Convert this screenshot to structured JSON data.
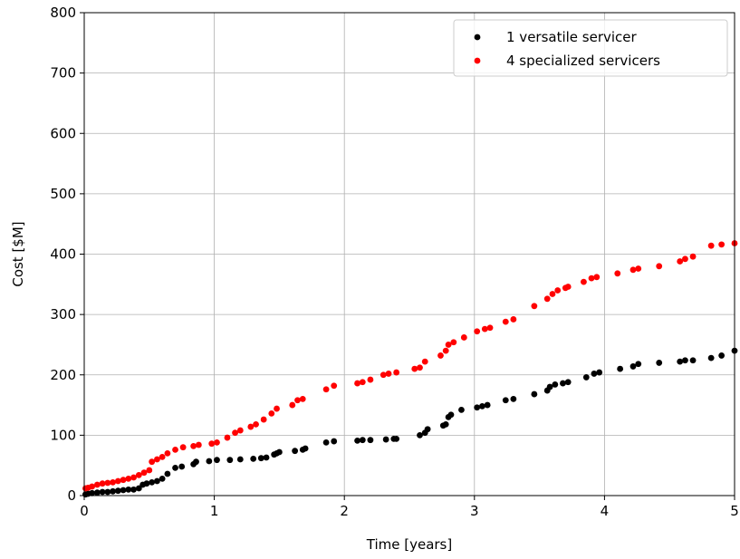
{
  "chart_data": {
    "type": "scatter",
    "xlabel": "Time [years]",
    "ylabel": "Cost [$M]",
    "xlim": [
      0,
      5
    ],
    "ylim": [
      0,
      800
    ],
    "xticks": [
      0,
      1,
      2,
      3,
      4,
      5
    ],
    "yticks": [
      0,
      100,
      200,
      300,
      400,
      500,
      600,
      700,
      800
    ],
    "grid": true,
    "legend_position": "top-right",
    "series": [
      {
        "name": "1 versatile servicer",
        "color": "#000000",
        "points": [
          [
            0.01,
            2
          ],
          [
            0.03,
            3
          ],
          [
            0.06,
            4
          ],
          [
            0.1,
            5
          ],
          [
            0.14,
            6
          ],
          [
            0.18,
            6
          ],
          [
            0.22,
            7
          ],
          [
            0.26,
            8
          ],
          [
            0.3,
            9
          ],
          [
            0.34,
            10
          ],
          [
            0.38,
            10
          ],
          [
            0.42,
            12
          ],
          [
            0.45,
            18
          ],
          [
            0.48,
            20
          ],
          [
            0.52,
            22
          ],
          [
            0.56,
            24
          ],
          [
            0.6,
            28
          ],
          [
            0.64,
            36
          ],
          [
            0.7,
            46
          ],
          [
            0.75,
            48
          ],
          [
            0.84,
            52
          ],
          [
            0.86,
            56
          ],
          [
            0.96,
            57
          ],
          [
            1.02,
            59
          ],
          [
            1.12,
            59
          ],
          [
            1.2,
            60
          ],
          [
            1.3,
            61
          ],
          [
            1.36,
            62
          ],
          [
            1.4,
            63
          ],
          [
            1.46,
            68
          ],
          [
            1.48,
            70
          ],
          [
            1.5,
            72
          ],
          [
            1.62,
            74
          ],
          [
            1.68,
            76
          ],
          [
            1.7,
            78
          ],
          [
            1.86,
            88
          ],
          [
            1.92,
            90
          ],
          [
            2.1,
            91
          ],
          [
            2.14,
            92
          ],
          [
            2.2,
            92
          ],
          [
            2.32,
            93
          ],
          [
            2.38,
            94
          ],
          [
            2.4,
            94
          ],
          [
            2.58,
            100
          ],
          [
            2.62,
            104
          ],
          [
            2.64,
            110
          ],
          [
            2.76,
            116
          ],
          [
            2.78,
            118
          ],
          [
            2.8,
            130
          ],
          [
            2.82,
            134
          ],
          [
            2.9,
            142
          ],
          [
            3.02,
            146
          ],
          [
            3.06,
            148
          ],
          [
            3.1,
            150
          ],
          [
            3.24,
            158
          ],
          [
            3.3,
            160
          ],
          [
            3.46,
            168
          ],
          [
            3.56,
            174
          ],
          [
            3.58,
            180
          ],
          [
            3.62,
            184
          ],
          [
            3.68,
            186
          ],
          [
            3.72,
            188
          ],
          [
            3.86,
            196
          ],
          [
            3.92,
            202
          ],
          [
            3.96,
            204
          ],
          [
            4.12,
            210
          ],
          [
            4.22,
            214
          ],
          [
            4.26,
            218
          ],
          [
            4.42,
            220
          ],
          [
            4.58,
            222
          ],
          [
            4.62,
            224
          ],
          [
            4.68,
            224
          ],
          [
            4.82,
            228
          ],
          [
            4.9,
            232
          ],
          [
            5.0,
            240
          ]
        ]
      },
      {
        "name": "4 specialized servicers",
        "color": "#ff0000",
        "points": [
          [
            0.01,
            12
          ],
          [
            0.03,
            13
          ],
          [
            0.06,
            15
          ],
          [
            0.1,
            18
          ],
          [
            0.14,
            20
          ],
          [
            0.18,
            21
          ],
          [
            0.22,
            22
          ],
          [
            0.26,
            24
          ],
          [
            0.3,
            26
          ],
          [
            0.34,
            28
          ],
          [
            0.38,
            30
          ],
          [
            0.42,
            34
          ],
          [
            0.46,
            38
          ],
          [
            0.5,
            42
          ],
          [
            0.52,
            56
          ],
          [
            0.56,
            60
          ],
          [
            0.6,
            64
          ],
          [
            0.64,
            70
          ],
          [
            0.7,
            76
          ],
          [
            0.76,
            80
          ],
          [
            0.84,
            82
          ],
          [
            0.88,
            84
          ],
          [
            0.98,
            86
          ],
          [
            1.02,
            88
          ],
          [
            1.1,
            96
          ],
          [
            1.16,
            104
          ],
          [
            1.2,
            108
          ],
          [
            1.28,
            114
          ],
          [
            1.32,
            118
          ],
          [
            1.38,
            126
          ],
          [
            1.44,
            136
          ],
          [
            1.48,
            144
          ],
          [
            1.6,
            150
          ],
          [
            1.64,
            158
          ],
          [
            1.68,
            160
          ],
          [
            1.86,
            176
          ],
          [
            1.92,
            182
          ],
          [
            2.1,
            186
          ],
          [
            2.14,
            188
          ],
          [
            2.2,
            192
          ],
          [
            2.3,
            200
          ],
          [
            2.34,
            202
          ],
          [
            2.4,
            204
          ],
          [
            2.54,
            210
          ],
          [
            2.58,
            212
          ],
          [
            2.62,
            222
          ],
          [
            2.74,
            232
          ],
          [
            2.78,
            240
          ],
          [
            2.8,
            250
          ],
          [
            2.84,
            254
          ],
          [
            2.92,
            262
          ],
          [
            3.02,
            272
          ],
          [
            3.08,
            276
          ],
          [
            3.12,
            278
          ],
          [
            3.24,
            288
          ],
          [
            3.3,
            292
          ],
          [
            3.46,
            314
          ],
          [
            3.56,
            326
          ],
          [
            3.6,
            334
          ],
          [
            3.64,
            340
          ],
          [
            3.7,
            344
          ],
          [
            3.72,
            346
          ],
          [
            3.84,
            354
          ],
          [
            3.9,
            360
          ],
          [
            3.94,
            362
          ],
          [
            4.1,
            368
          ],
          [
            4.22,
            374
          ],
          [
            4.26,
            376
          ],
          [
            4.42,
            380
          ],
          [
            4.58,
            388
          ],
          [
            4.62,
            392
          ],
          [
            4.68,
            396
          ],
          [
            4.82,
            414
          ],
          [
            4.9,
            416
          ],
          [
            5.0,
            418
          ]
        ]
      }
    ]
  }
}
